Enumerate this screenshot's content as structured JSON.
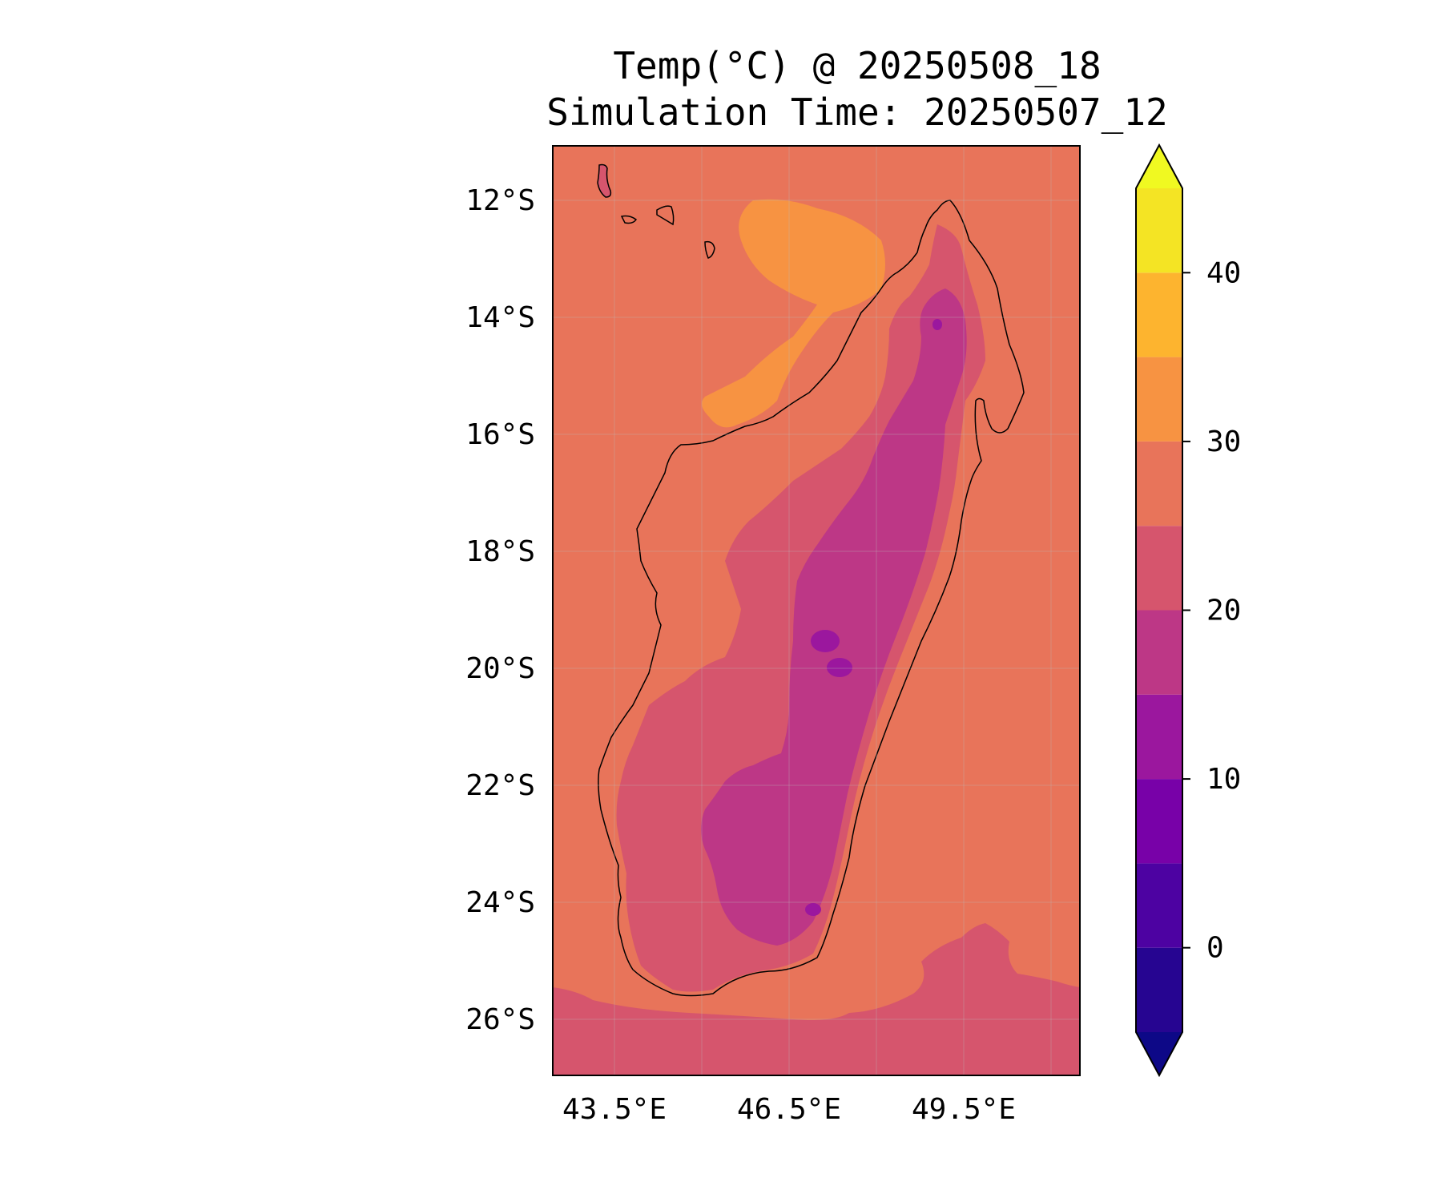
{
  "title": {
    "line1": "Temp(°C) @ 20250508_18",
    "line2": "Simulation Time: 20250507_12"
  },
  "map": {
    "region": "Madagascar",
    "lon_range": [
      42.5,
      51.5
    ],
    "lat_range": [
      -27,
      -11
    ],
    "lat_ticks": [
      "12°S",
      "14°S",
      "16°S",
      "18°S",
      "20°S",
      "22°S",
      "24°S",
      "26°S"
    ],
    "lon_ticks": [
      "43.5°E",
      "46.5°E",
      "49.5°E"
    ],
    "ocean_color": "#e8745a"
  },
  "colorbar": {
    "min": -5,
    "max": 45,
    "step": 5,
    "extend": "both",
    "tick_labels": [
      "0",
      "10",
      "20",
      "30",
      "40"
    ],
    "tick_values": [
      0,
      10,
      20,
      30,
      40
    ],
    "colors": [
      "#260591",
      "#4d02a2",
      "#7801a8",
      "#9b179e",
      "#bd3786",
      "#d6556d",
      "#e8745a",
      "#f79342",
      "#fdb42f",
      "#f4e424"
    ],
    "under_color": "#0d0887",
    "over_color": "#f0f921"
  }
}
